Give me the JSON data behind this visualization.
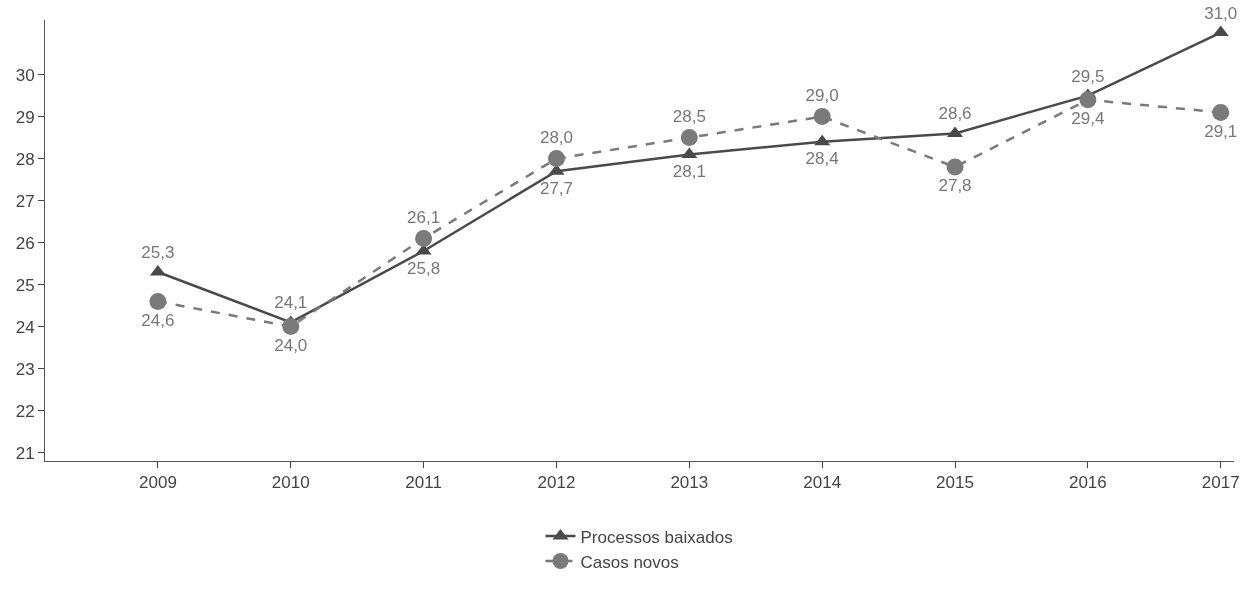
{
  "chart_data": {
    "type": "line",
    "categories": [
      "2009",
      "2010",
      "2011",
      "2012",
      "2013",
      "2014",
      "2015",
      "2016",
      "2017"
    ],
    "series": [
      {
        "name": "Processos baixados",
        "color": "#4a4a4a",
        "marker": "triangle",
        "line_style": "solid",
        "values": [
          25.3,
          24.1,
          25.8,
          27.7,
          28.1,
          28.4,
          28.6,
          29.5,
          31.0
        ],
        "value_labels": [
          "25,3",
          "24,1",
          "25,8",
          "27,7",
          "28,1",
          "28,4",
          "28,6",
          "29,5",
          "31,0"
        ]
      },
      {
        "name": "Casos novos",
        "color": "#7a7a7a",
        "marker": "circle",
        "line_style": "dashed",
        "values": [
          24.6,
          24.0,
          26.1,
          28.0,
          28.5,
          29.0,
          27.8,
          29.4,
          29.1
        ],
        "value_labels": [
          "24,6",
          "24,0",
          "26,1",
          "28,0",
          "28,5",
          "29,0",
          "27,8",
          "29,4",
          "29,1"
        ]
      }
    ],
    "ylim": [
      20.8,
      31.3
    ],
    "yticks": [
      21,
      22,
      23,
      24,
      25,
      26,
      27,
      28,
      29,
      30
    ],
    "legend": "bottom"
  }
}
